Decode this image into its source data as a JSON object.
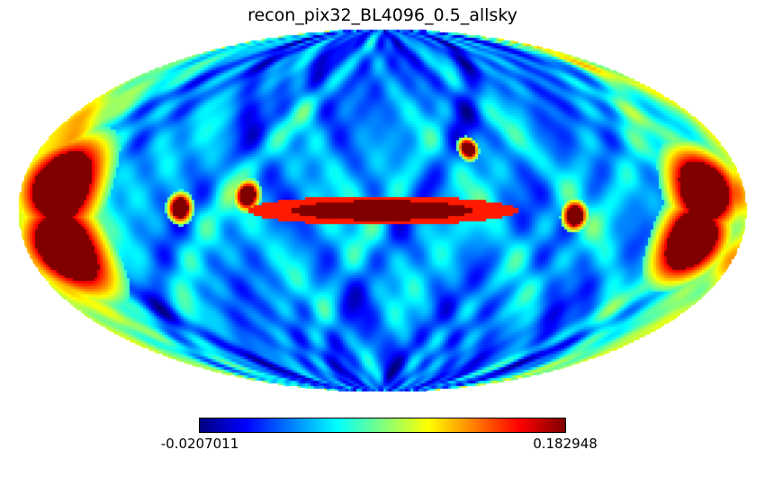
{
  "title": "recon_pix32_BL4096_0.5_allsky",
  "projection": "mollweide",
  "colormap": "jet",
  "colorbar": {
    "min_label": "-0.0207011",
    "max_label": "0.182948",
    "min": -0.0207011,
    "max": 0.182948
  },
  "chart_data": {
    "type": "heatmap",
    "title": "recon_pix32_BL4096_0.5_allsky",
    "projection": "mollweide",
    "colormap": "jet",
    "vmin": -0.0207011,
    "vmax": 0.182948,
    "features": [
      {
        "kind": "band",
        "lon": 0,
        "lat": 0,
        "lon_half_width": 45,
        "lat_half_width": 4,
        "value": 0.182948
      },
      {
        "kind": "blob",
        "lon": 160,
        "lat": 10,
        "radius": 14,
        "value": 0.182948
      },
      {
        "kind": "blob",
        "lon": 160,
        "lat": -15,
        "radius": 14,
        "value": 0.182948
      },
      {
        "kind": "blob",
        "lon": -160,
        "lat": 8,
        "radius": 12,
        "value": 0.182948
      },
      {
        "kind": "blob",
        "lon": -155,
        "lat": -12,
        "radius": 12,
        "value": 0.182948
      },
      {
        "kind": "blob",
        "lon": 100,
        "lat": 1,
        "radius": 4,
        "value": 0.182948
      },
      {
        "kind": "blob",
        "lon": 67,
        "lat": 6,
        "radius": 4,
        "value": 0.182948
      },
      {
        "kind": "blob",
        "lon": -95,
        "lat": -2,
        "radius": 4,
        "value": 0.182948
      },
      {
        "kind": "blob",
        "lon": -45,
        "lat": 25,
        "radius": 3,
        "value": 0.17
      }
    ]
  }
}
